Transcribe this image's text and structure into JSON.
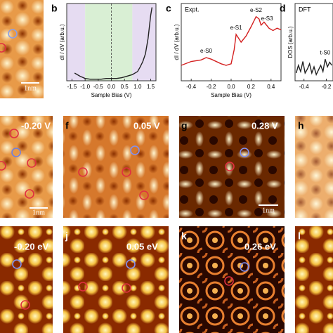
{
  "chart_data": [
    {
      "type": "line",
      "panel_label": "b",
      "xlabel": "Sample Bias (V)",
      "ylabel": "dI / dV (arb.u.)",
      "xlim": [
        -1.7,
        1.7
      ],
      "ylim": [
        0,
        1
      ],
      "xticks": [
        {
          "value": -1.5,
          "label": "-1.5"
        },
        {
          "value": -1.0,
          "label": "-1.0"
        },
        -0.5,
        {
          "value": 0,
          "label": "0.0"
        },
        0.5,
        {
          "value": 1.0,
          "label": "1.0"
        },
        1.5
      ],
      "shaded_regions": [
        {
          "range": [
            -1.7,
            -1.0
          ],
          "color": "#e6dcf2"
        },
        {
          "range": [
            -1.0,
            0.8
          ],
          "color": "#d9efd4"
        },
        {
          "range": [
            0.8,
            1.7
          ],
          "color": "#e6dcf2"
        }
      ],
      "vlines": [
        0
      ],
      "x": [
        -1.4,
        -1.2,
        -1.0,
        -0.8,
        -0.6,
        -0.4,
        -0.2,
        0,
        0.2,
        0.4,
        0.6,
        0.8,
        1.0,
        1.1,
        1.2,
        1.3,
        1.4,
        1.5,
        1.55
      ],
      "series": [
        {
          "color": "#222222",
          "values": [
            0.1,
            0.06,
            0.03,
            0.02,
            0.02,
            0.02,
            0.03,
            0.03,
            0.03,
            0.04,
            0.06,
            0.08,
            0.12,
            0.18,
            0.25,
            0.35,
            0.55,
            0.85,
            0.95
          ]
        }
      ]
    },
    {
      "type": "line",
      "panel_label": "c",
      "xlabel": "Sample Bias (V)",
      "ylabel": "dI / dV (arb.u.)",
      "title": "Expt.",
      "xlim": [
        -0.5,
        0.5
      ],
      "ylim": [
        0,
        1
      ],
      "xticks": [
        -0.4,
        -0.2,
        {
          "value": 0,
          "label": "0.0"
        },
        0.2,
        0.4
      ],
      "x": [
        -0.5,
        -0.4,
        -0.3,
        -0.25,
        -0.2,
        -0.1,
        -0.05,
        0,
        0.03,
        0.05,
        0.1,
        0.15,
        0.2,
        0.25,
        0.28,
        0.3,
        0.33,
        0.38,
        0.42,
        0.46,
        0.5
      ],
      "series": [
        {
          "color": "#d42020",
          "values": [
            0.2,
            0.25,
            0.27,
            0.3,
            0.28,
            0.22,
            0.2,
            0.22,
            0.4,
            0.6,
            0.5,
            0.58,
            0.7,
            0.83,
            0.8,
            0.72,
            0.76,
            0.68,
            0.65,
            0.68,
            0.66
          ]
        }
      ],
      "annotations": [
        {
          "text": "e-S0",
          "x": -0.25,
          "y": 0.3
        },
        {
          "text": "e-S1",
          "x": 0.05,
          "y": 0.6
        },
        {
          "text": "e-S2",
          "x": 0.25,
          "y": 0.83
        },
        {
          "text": "e-S3",
          "x": 0.36,
          "y": 0.72
        }
      ]
    },
    {
      "type": "line",
      "panel_label": "d",
      "ylabel": "DOS (arb.u.)",
      "title": "DFT",
      "xlim": [
        -0.48,
        -0.14
      ],
      "ylim": [
        0,
        1
      ],
      "xticks": [
        -0.4,
        -0.2
      ],
      "x": [
        -0.47,
        -0.45,
        -0.43,
        -0.41,
        -0.39,
        -0.37,
        -0.35,
        -0.33,
        -0.31,
        -0.29,
        -0.27,
        -0.25,
        -0.23,
        -0.21,
        -0.19,
        -0.17,
        -0.15
      ],
      "series": [
        {
          "color": "#222222",
          "values": [
            0.1,
            0.2,
            0.12,
            0.25,
            0.1,
            0.15,
            0.22,
            0.1,
            0.18,
            0.08,
            0.14,
            0.2,
            0.12,
            0.28,
            0.18,
            0.24,
            0.2
          ]
        }
      ],
      "annotations": [
        {
          "text": "t-S0",
          "x": -0.21,
          "y": 0.28
        }
      ]
    }
  ],
  "image_panels": {
    "a": {
      "scale": "1nm"
    },
    "e": {
      "energy": "-0.20 V",
      "scale": "1nm"
    },
    "f": {
      "label": "f",
      "energy": "0.05 V"
    },
    "g": {
      "label": "g",
      "energy": "0.28 V",
      "scale": "1nm"
    },
    "h": {
      "label": "h"
    },
    "i": {
      "energy": "-0.20 eV"
    },
    "j": {
      "label": "j",
      "energy": "0.05 eV"
    },
    "k": {
      "label": "k",
      "energy": "0.26 eV"
    },
    "l": {
      "label": "l"
    }
  }
}
